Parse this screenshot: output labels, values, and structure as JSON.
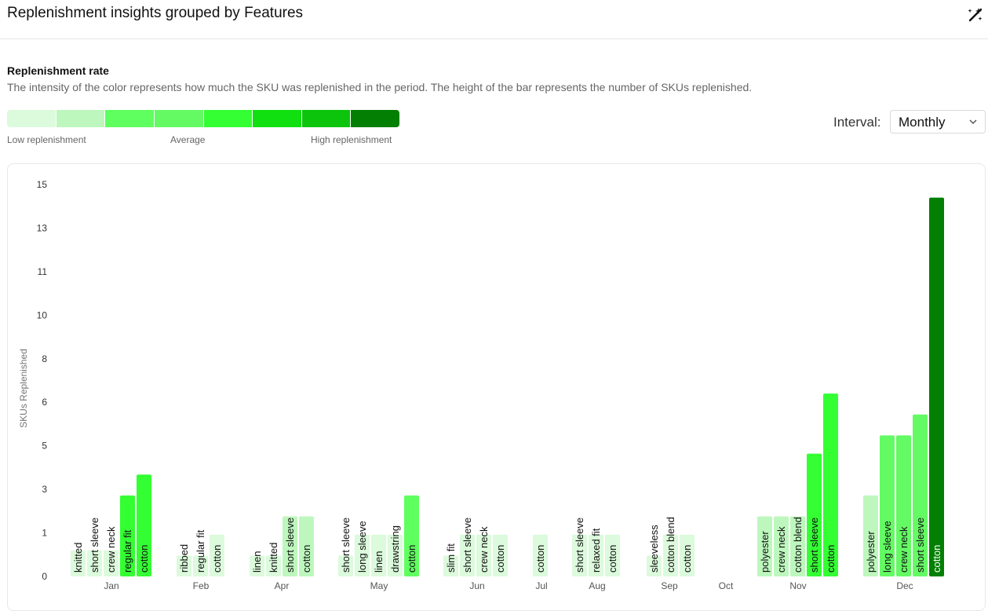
{
  "header": {
    "title": "Replenishment insights grouped by Features",
    "icon": "magic-wand-icon"
  },
  "section": {
    "title": "Replenishment rate",
    "description": "The intensity of the color represents how much the SKU was replenished in the period. The height of the bar represents the number of SKUs replenished."
  },
  "legend": {
    "colors": [
      "#dcfadc",
      "#bdf7bd",
      "#5eff5e",
      "#64fa64",
      "#33ff33",
      "#10e010",
      "#0cc40c",
      "#038003"
    ],
    "low_label": "Low replenishment",
    "avg_label": "Average",
    "high_label": "High replenishment"
  },
  "controls": {
    "interval_label": "Interval:",
    "interval_value": "Monthly"
  },
  "chart_data": {
    "type": "bar",
    "ylabel": "SKUs Replenished",
    "xlabel": "",
    "y_ticks": [
      "0",
      "1",
      "3",
      "5",
      "6",
      "8",
      "10",
      "11",
      "13",
      "15"
    ],
    "ylim": [
      0,
      15
    ],
    "groups": [
      {
        "month": "Jan",
        "bars": [
          {
            "label": "knitted",
            "value": 1,
            "color": "#dcfadc"
          },
          {
            "label": "short sleeve",
            "value": 1,
            "color": "#dcfadc"
          },
          {
            "label": "crew neck",
            "value": 1,
            "color": "#dcfadc"
          },
          {
            "label": "regular fit",
            "value": 3.1,
            "color": "#33ff33"
          },
          {
            "label": "cotton",
            "value": 3.9,
            "color": "#33ff33"
          }
        ]
      },
      {
        "month": "Feb",
        "bars": [
          {
            "label": "ribbed",
            "value": 0.8,
            "color": "#dcfadc"
          },
          {
            "label": "regular fit",
            "value": 0.8,
            "color": "#dcfadc"
          },
          {
            "label": "cotton",
            "value": 1.6,
            "color": "#dcfadc"
          }
        ]
      },
      {
        "month": "Apr",
        "bars": [
          {
            "label": "linen",
            "value": 0.8,
            "color": "#dcfadc"
          },
          {
            "label": "knitted",
            "value": 0.8,
            "color": "#dcfadc"
          },
          {
            "label": "short sleeve",
            "value": 2.3,
            "color": "#bdf7bd"
          },
          {
            "label": "cotton",
            "value": 2.3,
            "color": "#bdf7bd"
          }
        ]
      },
      {
        "month": "May",
        "bars": [
          {
            "label": "short sleeve",
            "value": 0.8,
            "color": "#dcfadc"
          },
          {
            "label": "long sleeve",
            "value": 1.6,
            "color": "#dcfadc"
          },
          {
            "label": "linen",
            "value": 1.6,
            "color": "#dcfadc"
          },
          {
            "label": "drawstring",
            "value": 1.6,
            "color": "#dcfadc"
          },
          {
            "label": "cotton",
            "value": 3.1,
            "color": "#5eff5e"
          }
        ]
      },
      {
        "month": "Jun",
        "bars": [
          {
            "label": "slim fit",
            "value": 0.8,
            "color": "#dcfadc"
          },
          {
            "label": "short sleeve",
            "value": 1.6,
            "color": "#dcfadc"
          },
          {
            "label": "crew neck",
            "value": 1.6,
            "color": "#dcfadc"
          },
          {
            "label": "cotton",
            "value": 1.6,
            "color": "#dcfadc"
          }
        ]
      },
      {
        "month": "Jul",
        "bars": [
          {
            "label": "cotton",
            "value": 1.6,
            "color": "#dcfadc"
          }
        ]
      },
      {
        "month": "Aug",
        "bars": [
          {
            "label": "short sleeve",
            "value": 1.6,
            "color": "#dcfadc"
          },
          {
            "label": "relaxed fit",
            "value": 1.6,
            "color": "#dcfadc"
          },
          {
            "label": "cotton",
            "value": 1.6,
            "color": "#dcfadc"
          }
        ]
      },
      {
        "month": "Sep",
        "bars": [
          {
            "label": "sleeveless",
            "value": 0.8,
            "color": "#dcfadc"
          },
          {
            "label": "cotton blend",
            "value": 1.6,
            "color": "#dcfadc"
          },
          {
            "label": "cotton",
            "value": 1.6,
            "color": "#dcfadc"
          }
        ]
      },
      {
        "month": "Oct",
        "bars": []
      },
      {
        "month": "Nov",
        "bars": [
          {
            "label": "polyester",
            "value": 2.3,
            "color": "#bdf7bd"
          },
          {
            "label": "crew neck",
            "value": 2.3,
            "color": "#bdf7bd"
          },
          {
            "label": "cotton blend",
            "value": 2.3,
            "color": "#bdf7bd"
          },
          {
            "label": "short sleeve",
            "value": 4.7,
            "color": "#33ff33"
          },
          {
            "label": "cotton",
            "value": 7.0,
            "color": "#33ff33"
          }
        ]
      },
      {
        "month": "Dec",
        "bars": [
          {
            "label": "polyester",
            "value": 3.1,
            "color": "#bdf7bd"
          },
          {
            "label": "long sleeve",
            "value": 5.4,
            "color": "#64fa64"
          },
          {
            "label": "crew neck",
            "value": 5.4,
            "color": "#64fa64"
          },
          {
            "label": "short sleeve",
            "value": 6.2,
            "color": "#64fa64"
          },
          {
            "label": "cotton",
            "value": 14.5,
            "color": "#038003"
          }
        ]
      }
    ]
  }
}
